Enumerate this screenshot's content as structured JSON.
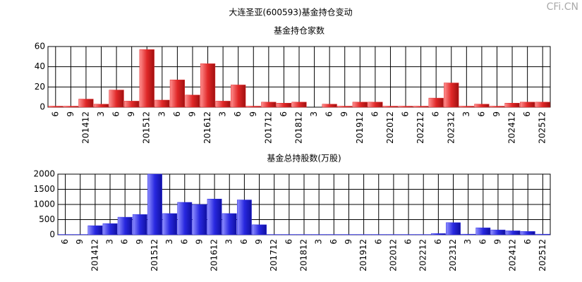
{
  "title": "大连圣亚(600593)基金持仓变动",
  "watermark": "CFi.CN",
  "chart_data": [
    {
      "type": "bar",
      "title": "基金持仓家数",
      "categories": [
        "6",
        "9",
        "201412",
        "3",
        "6",
        "9",
        "201512",
        "3",
        "6",
        "9",
        "201612",
        "3",
        "6",
        "9",
        "201712",
        "6",
        "201812",
        "3",
        "6",
        "9",
        "201912",
        "6",
        "202012",
        "6",
        "202212",
        "6",
        "202312",
        "3",
        "6",
        "9",
        "202412",
        "6",
        "202512"
      ],
      "values": [
        1,
        1,
        8,
        3,
        17,
        6,
        57,
        7,
        27,
        12,
        43,
        6,
        22,
        1,
        5,
        4,
        5,
        0,
        3,
        1,
        5,
        5,
        1,
        1,
        1,
        9,
        24,
        1,
        3,
        1,
        4,
        5,
        5
      ],
      "color": "#e02828",
      "ylim": [
        0,
        60
      ],
      "yticks": [
        0,
        20,
        40,
        60
      ],
      "grid": true
    },
    {
      "type": "bar",
      "title": "基金总持股数(万股)",
      "categories": [
        "6",
        "9",
        "201412",
        "3",
        "6",
        "9",
        "201512",
        "3",
        "6",
        "9",
        "201612",
        "3",
        "6",
        "9",
        "201712",
        "6",
        "201812",
        "3",
        "6",
        "9",
        "201912",
        "6",
        "202012",
        "6",
        "202212",
        "6",
        "202312",
        "3",
        "6",
        "9",
        "202412",
        "6",
        "202512"
      ],
      "values": [
        10,
        10,
        300,
        370,
        580,
        670,
        2000,
        700,
        1070,
        1000,
        1180,
        700,
        1150,
        330,
        10,
        10,
        10,
        10,
        10,
        10,
        10,
        10,
        10,
        10,
        10,
        40,
        400,
        20,
        230,
        160,
        130,
        110,
        20
      ],
      "color": "#2828e0",
      "ylim": [
        0,
        2000
      ],
      "yticks": [
        0,
        500,
        1000,
        1500,
        2000
      ],
      "grid": true
    }
  ]
}
